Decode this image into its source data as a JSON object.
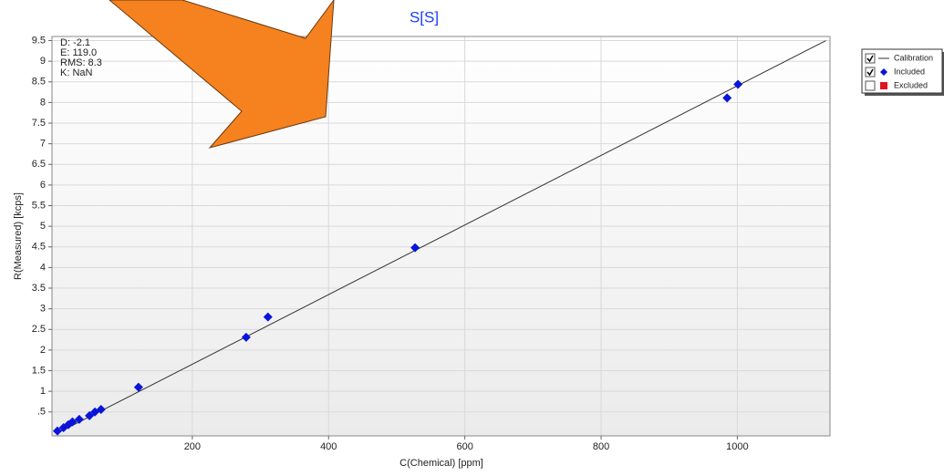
{
  "chart_data": {
    "type": "scatter",
    "title": "S[S]",
    "x_label": "C(Chemical) [ppm]",
    "y_label": "R(Measured) [kcps]",
    "annotations": [
      "D: -2.1",
      "E: 119.0",
      "RMS: 8.3",
      "K: NaN"
    ],
    "xlim": [
      -6,
      1136
    ],
    "ylim": [
      -0.08,
      9.6
    ],
    "xticks": [
      200,
      400,
      600,
      800,
      1000
    ],
    "yticks": [
      {
        "value": 0.5,
        "label": ".5"
      },
      1,
      1.5,
      2,
      2.5,
      3,
      3.5,
      4,
      4.5,
      5,
      5.5,
      6,
      6.5,
      7,
      7.5,
      8,
      8.5,
      9,
      9.5
    ],
    "grid": true,
    "legend": "right",
    "series": [
      {
        "name": "Calibration",
        "type": "line",
        "color": "#333333",
        "checked": true,
        "x": [
          0,
          1130
        ],
        "values": [
          -0.03,
          9.5
        ]
      },
      {
        "name": "Included",
        "type": "scatter",
        "color": "#0a14d8",
        "checked": true,
        "x": [
          2,
          11,
          18,
          24,
          34,
          49,
          57,
          66,
          121,
          279,
          311,
          527,
          985,
          1001
        ],
        "values": [
          0.04,
          0.12,
          0.19,
          0.26,
          0.32,
          0.41,
          0.5,
          0.56,
          1.1,
          2.31,
          2.8,
          4.48,
          8.11,
          8.44
        ]
      },
      {
        "name": "Excluded",
        "type": "scatter",
        "color": "#e0141e",
        "checked": false,
        "x": [],
        "values": []
      }
    ]
  }
}
